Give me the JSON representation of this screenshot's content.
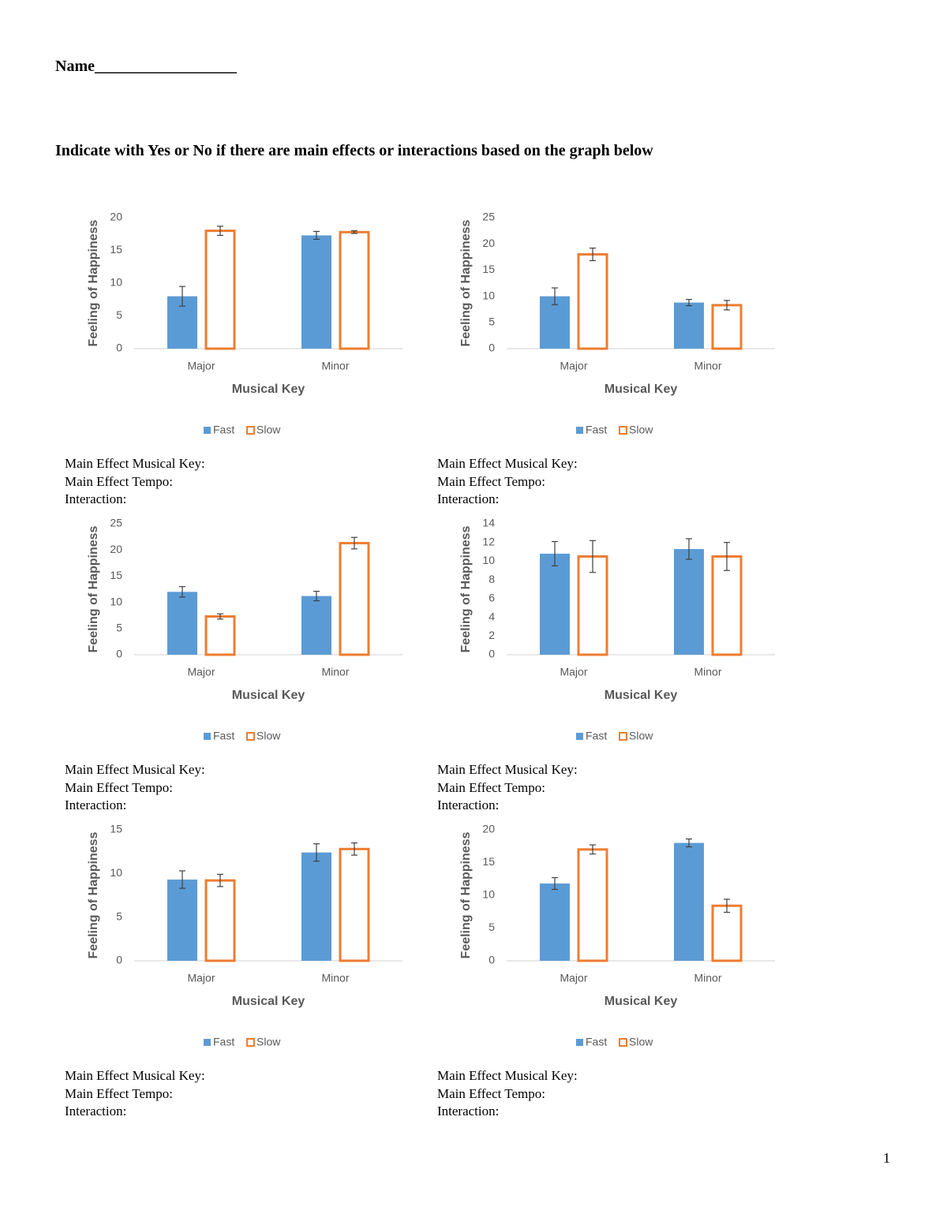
{
  "header": {
    "name_label": "Name__________________",
    "instruction": "Indicate with Yes or No if there are main effects or interactions based on the graph below"
  },
  "chart_data": [
    {
      "type": "bar",
      "y_label": "Feeling of Happiness",
      "x_label": "Musical Key",
      "categories": [
        "Major",
        "Minor"
      ],
      "ylim": [
        0,
        20
      ],
      "yticks": [
        0,
        5,
        10,
        15,
        20
      ],
      "series": [
        {
          "name": "Fast",
          "color": "#5b9bd5",
          "outline": false,
          "values": [
            8,
            17.3
          ],
          "errors": [
            1.5,
            0.6
          ]
        },
        {
          "name": "Slow",
          "color": "#ed7d31",
          "outline": true,
          "values": [
            18,
            17.8
          ],
          "errors": [
            0.7,
            0.2
          ]
        }
      ]
    },
    {
      "type": "bar",
      "y_label": "Feeling of Happiness",
      "x_label": "Musical Key",
      "categories": [
        "Major",
        "Minor"
      ],
      "ylim": [
        0,
        25
      ],
      "yticks": [
        0,
        5,
        10,
        15,
        20,
        25
      ],
      "series": [
        {
          "name": "Fast",
          "color": "#5b9bd5",
          "outline": false,
          "values": [
            10,
            8.8
          ],
          "errors": [
            1.6,
            0.6
          ]
        },
        {
          "name": "Slow",
          "color": "#ed7d31",
          "outline": true,
          "values": [
            18,
            8.3
          ],
          "errors": [
            1.2,
            0.9
          ]
        }
      ]
    },
    {
      "type": "bar",
      "y_label": "Feeling of Happiness",
      "x_label": "Musical Key",
      "categories": [
        "Major",
        "Minor"
      ],
      "ylim": [
        0,
        25
      ],
      "yticks": [
        0,
        5,
        10,
        15,
        20,
        25
      ],
      "series": [
        {
          "name": "Fast",
          "color": "#5b9bd5",
          "outline": false,
          "values": [
            12,
            11.2
          ],
          "errors": [
            1,
            0.9
          ]
        },
        {
          "name": "Slow",
          "color": "#ed7d31",
          "outline": true,
          "values": [
            7.3,
            21.3
          ],
          "errors": [
            0.5,
            1.1
          ]
        }
      ]
    },
    {
      "type": "bar",
      "y_label": "Feeling of Happiness",
      "x_label": "Musical Key",
      "categories": [
        "Major",
        "Minor"
      ],
      "ylim": [
        0,
        14
      ],
      "yticks": [
        0,
        2,
        4,
        6,
        8,
        10,
        12,
        14
      ],
      "series": [
        {
          "name": "Fast",
          "color": "#5b9bd5",
          "outline": false,
          "values": [
            10.8,
            11.3
          ],
          "errors": [
            1.3,
            1.1
          ]
        },
        {
          "name": "Slow",
          "color": "#ed7d31",
          "outline": true,
          "values": [
            10.5,
            10.5
          ],
          "errors": [
            1.7,
            1.5
          ]
        }
      ]
    },
    {
      "type": "bar",
      "y_label": "Feeling of Happiness",
      "x_label": "Musical Key",
      "categories": [
        "Major",
        "Minor"
      ],
      "ylim": [
        0,
        15
      ],
      "yticks": [
        0,
        5,
        10,
        15
      ],
      "series": [
        {
          "name": "Fast",
          "color": "#5b9bd5",
          "outline": false,
          "values": [
            9.3,
            12.4
          ],
          "errors": [
            1,
            1
          ]
        },
        {
          "name": "Slow",
          "color": "#ed7d31",
          "outline": true,
          "values": [
            9.2,
            12.8
          ],
          "errors": [
            0.7,
            0.7
          ]
        }
      ]
    },
    {
      "type": "bar",
      "y_label": "Feeling of Happiness",
      "x_label": "Musical Key",
      "categories": [
        "Major",
        "Minor"
      ],
      "ylim": [
        0,
        20
      ],
      "yticks": [
        0,
        5,
        10,
        15,
        20
      ],
      "series": [
        {
          "name": "Fast",
          "color": "#5b9bd5",
          "outline": false,
          "values": [
            11.8,
            18
          ],
          "errors": [
            0.9,
            0.6
          ]
        },
        {
          "name": "Slow",
          "color": "#ed7d31",
          "outline": true,
          "values": [
            17,
            8.4
          ],
          "errors": [
            0.7,
            1
          ]
        }
      ]
    }
  ],
  "questions": [
    [
      "Main Effect Musical Key:",
      "Main Effect Tempo:",
      "Interaction:"
    ],
    [
      "Main Effect Musical Key:",
      "Main Effect Tempo:",
      "Interaction:"
    ],
    [
      "Main Effect Musical Key:",
      "Main Effect Tempo:",
      "Interaction:"
    ],
    [
      "Main Effect Musical Key:",
      "Main Effect Tempo:",
      "Interaction:"
    ],
    [
      "Main Effect Musical Key:",
      "Main Effect Tempo:",
      "Interaction:"
    ],
    [
      "Main Effect Musical Key:",
      "Main Effect Tempo:",
      "Interaction:"
    ]
  ],
  "page_number": "1"
}
